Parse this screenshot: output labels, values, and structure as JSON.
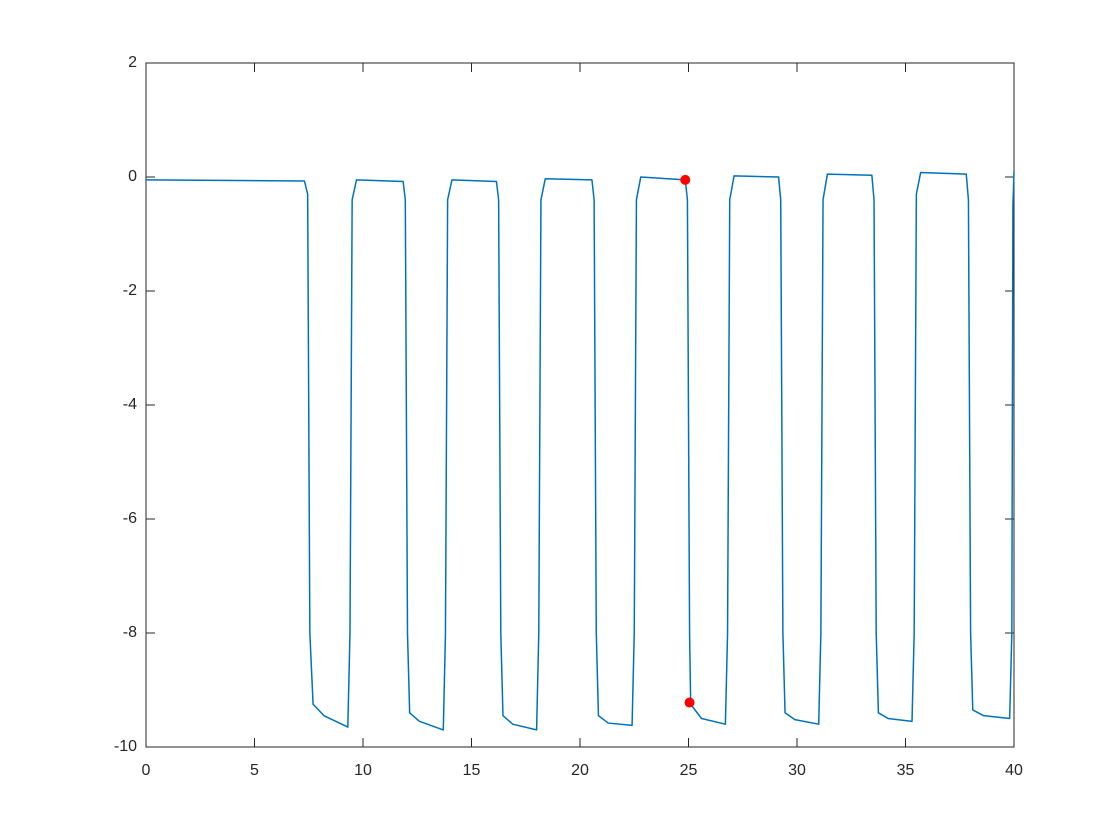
{
  "chart_data": {
    "type": "line",
    "xlim": [
      0,
      40
    ],
    "ylim": [
      -10,
      2
    ],
    "xticks": [
      0,
      5,
      10,
      15,
      20,
      25,
      30,
      35,
      40
    ],
    "yticks": [
      -10,
      -8,
      -6,
      -4,
      -2,
      0,
      2
    ],
    "grid": false,
    "box": true,
    "series": [
      {
        "color": "#0072bd",
        "mode": "line",
        "x": [
          0,
          7.3,
          7.45,
          7.55,
          7.7,
          8.2,
          9.3,
          9.4,
          9.5,
          9.7,
          11.85,
          11.95,
          12.05,
          12.15,
          12.6,
          13.7,
          13.8,
          13.9,
          14.1,
          16.15,
          16.25,
          16.35,
          16.45,
          16.9,
          18.0,
          18.1,
          18.2,
          18.4,
          20.55,
          20.65,
          20.75,
          20.85,
          21.3,
          22.4,
          22.5,
          22.6,
          22.8,
          24.85,
          24.95,
          25.05,
          25.1,
          25.6,
          26.7,
          26.8,
          26.9,
          27.1,
          29.15,
          29.25,
          29.35,
          29.45,
          29.9,
          31.0,
          31.1,
          31.2,
          31.4,
          33.45,
          33.55,
          33.65,
          33.75,
          34.2,
          35.3,
          35.4,
          35.5,
          35.7,
          37.8,
          37.9,
          38.0,
          38.1,
          38.6,
          39.8,
          39.9,
          39.95,
          40
        ],
        "values": [
          -0.05,
          -0.07,
          -0.3,
          -8,
          -9.25,
          -9.45,
          -9.65,
          -8,
          -0.4,
          -0.05,
          -0.08,
          -0.4,
          -8,
          -9.4,
          -9.55,
          -9.7,
          -8,
          -0.4,
          -0.05,
          -0.08,
          -0.4,
          -8,
          -9.45,
          -9.6,
          -9.7,
          -8,
          -0.4,
          -0.03,
          -0.05,
          -0.4,
          -8,
          -9.45,
          -9.58,
          -9.62,
          -8,
          -0.4,
          0,
          -0.05,
          -0.4,
          -8,
          -9.25,
          -9.5,
          -9.6,
          -8,
          -0.4,
          0.02,
          0,
          -0.4,
          -8,
          -9.4,
          -9.52,
          -9.6,
          -8,
          -0.4,
          0.05,
          0.03,
          -0.4,
          -8,
          -9.4,
          -9.5,
          -9.55,
          -8,
          -0.3,
          0.08,
          0.05,
          -0.4,
          -8,
          -9.35,
          -9.45,
          -9.5,
          -8,
          -0.5,
          0.1
        ]
      },
      {
        "color": "#ff0000",
        "mode": "markers",
        "x": [
          24.85,
          25.05
        ],
        "values": [
          -0.05,
          -9.22
        ]
      }
    ]
  }
}
